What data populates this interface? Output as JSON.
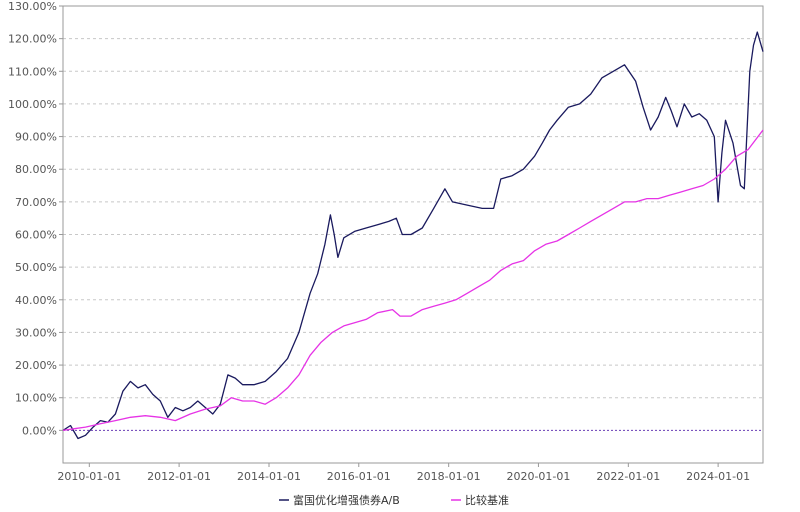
{
  "chart_data": {
    "type": "line",
    "title": "",
    "xlabel": "",
    "ylabel": "",
    "x_ticks": [
      "2010-01-01",
      "2012-01-01",
      "2014-01-01",
      "2016-01-01",
      "2018-01-01",
      "2020-01-01",
      "2022-01-01",
      "2024-01-01"
    ],
    "y_ticks": [
      "0.00%",
      "10.00%",
      "20.00%",
      "30.00%",
      "40.00%",
      "50.00%",
      "60.00%",
      "70.00%",
      "80.00%",
      "90.00%",
      "100.00%",
      "110.00%",
      "120.00%",
      "130.00%"
    ],
    "xlim": [
      "2009-06-01",
      "2024-12-31"
    ],
    "ylim": [
      -10,
      130
    ],
    "grid": "horizontal-dashed",
    "legend_position": "bottom-center",
    "baseline": 0,
    "series": [
      {
        "name": "富国优化增强债券A/B",
        "color": "#1a1a5e",
        "points": [
          [
            "2009-06-01",
            0
          ],
          [
            "2009-08-01",
            1.5
          ],
          [
            "2009-10-01",
            -2.5
          ],
          [
            "2009-12-01",
            -1.5
          ],
          [
            "2010-02-01",
            1
          ],
          [
            "2010-04-01",
            3
          ],
          [
            "2010-06-01",
            2.5
          ],
          [
            "2010-08-01",
            5
          ],
          [
            "2010-10-01",
            12
          ],
          [
            "2010-12-01",
            15
          ],
          [
            "2011-02-01",
            13
          ],
          [
            "2011-04-01",
            14
          ],
          [
            "2011-06-01",
            11
          ],
          [
            "2011-08-01",
            9
          ],
          [
            "2011-10-01",
            4
          ],
          [
            "2011-12-01",
            7
          ],
          [
            "2012-02-01",
            6
          ],
          [
            "2012-04-01",
            7
          ],
          [
            "2012-06-01",
            9
          ],
          [
            "2012-08-01",
            7
          ],
          [
            "2012-10-01",
            5
          ],
          [
            "2012-12-01",
            8
          ],
          [
            "2013-02-01",
            17
          ],
          [
            "2013-04-01",
            16
          ],
          [
            "2013-06-01",
            14
          ],
          [
            "2013-09-01",
            14
          ],
          [
            "2013-12-01",
            15
          ],
          [
            "2014-03-01",
            18
          ],
          [
            "2014-06-01",
            22
          ],
          [
            "2014-09-01",
            30
          ],
          [
            "2014-12-01",
            42
          ],
          [
            "2015-02-01",
            48
          ],
          [
            "2015-04-01",
            57
          ],
          [
            "2015-05-15",
            66
          ],
          [
            "2015-06-15",
            60
          ],
          [
            "2015-07-15",
            53
          ],
          [
            "2015-09-01",
            59
          ],
          [
            "2015-12-01",
            61
          ],
          [
            "2016-03-01",
            62
          ],
          [
            "2016-06-01",
            63
          ],
          [
            "2016-09-01",
            64
          ],
          [
            "2016-11-01",
            65
          ],
          [
            "2016-12-20",
            60
          ],
          [
            "2017-03-01",
            60
          ],
          [
            "2017-06-01",
            62
          ],
          [
            "2017-09-01",
            68
          ],
          [
            "2017-12-01",
            74
          ],
          [
            "2018-02-01",
            70
          ],
          [
            "2018-06-01",
            69
          ],
          [
            "2018-10-01",
            68
          ],
          [
            "2019-01-01",
            68
          ],
          [
            "2019-03-01",
            77
          ],
          [
            "2019-06-01",
            78
          ],
          [
            "2019-09-01",
            80
          ],
          [
            "2019-12-01",
            84
          ],
          [
            "2020-02-01",
            88
          ],
          [
            "2020-04-01",
            92
          ],
          [
            "2020-06-01",
            95
          ],
          [
            "2020-09-01",
            99
          ],
          [
            "2020-12-01",
            100
          ],
          [
            "2021-03-01",
            103
          ],
          [
            "2021-06-01",
            108
          ],
          [
            "2021-09-01",
            110
          ],
          [
            "2021-12-01",
            112
          ],
          [
            "2022-03-01",
            107
          ],
          [
            "2022-05-01",
            99
          ],
          [
            "2022-07-01",
            92
          ],
          [
            "2022-09-01",
            96
          ],
          [
            "2022-11-01",
            102
          ],
          [
            "2022-12-15",
            98
          ],
          [
            "2023-02-01",
            93
          ],
          [
            "2023-04-01",
            100
          ],
          [
            "2023-06-01",
            96
          ],
          [
            "2023-08-01",
            97
          ],
          [
            "2023-10-01",
            95
          ],
          [
            "2023-12-01",
            90
          ],
          [
            "2024-01-01",
            70
          ],
          [
            "2024-02-01",
            85
          ],
          [
            "2024-03-01",
            95
          ],
          [
            "2024-05-01",
            88
          ],
          [
            "2024-07-01",
            75
          ],
          [
            "2024-08-01",
            74
          ],
          [
            "2024-09-15",
            110
          ],
          [
            "2024-10-15",
            118
          ],
          [
            "2024-11-15",
            122
          ],
          [
            "2024-12-31",
            116
          ]
        ]
      },
      {
        "name": "比较基准",
        "color": "#e633e6",
        "points": [
          [
            "2009-06-01",
            0
          ],
          [
            "2009-09-01",
            0.5
          ],
          [
            "2009-12-01",
            1
          ],
          [
            "2010-04-01",
            2
          ],
          [
            "2010-08-01",
            3
          ],
          [
            "2010-12-01",
            4
          ],
          [
            "2011-04-01",
            4.5
          ],
          [
            "2011-08-01",
            4
          ],
          [
            "2011-12-01",
            3
          ],
          [
            "2012-04-01",
            5
          ],
          [
            "2012-08-01",
            6.5
          ],
          [
            "2012-12-01",
            7.5
          ],
          [
            "2013-03-01",
            10
          ],
          [
            "2013-06-01",
            9
          ],
          [
            "2013-09-01",
            9
          ],
          [
            "2013-12-01",
            8
          ],
          [
            "2014-03-01",
            10
          ],
          [
            "2014-06-01",
            13
          ],
          [
            "2014-09-01",
            17
          ],
          [
            "2014-12-01",
            23
          ],
          [
            "2015-03-01",
            27
          ],
          [
            "2015-06-01",
            30
          ],
          [
            "2015-09-01",
            32
          ],
          [
            "2015-12-01",
            33
          ],
          [
            "2016-03-01",
            34
          ],
          [
            "2016-06-01",
            36
          ],
          [
            "2016-10-01",
            37
          ],
          [
            "2016-12-01",
            35
          ],
          [
            "2017-03-01",
            35
          ],
          [
            "2017-06-01",
            37
          ],
          [
            "2017-09-01",
            38
          ],
          [
            "2017-12-01",
            39
          ],
          [
            "2018-03-01",
            40
          ],
          [
            "2018-06-01",
            42
          ],
          [
            "2018-09-01",
            44
          ],
          [
            "2018-12-01",
            46
          ],
          [
            "2019-03-01",
            49
          ],
          [
            "2019-06-01",
            51
          ],
          [
            "2019-09-01",
            52
          ],
          [
            "2019-12-01",
            55
          ],
          [
            "2020-03-01",
            57
          ],
          [
            "2020-06-01",
            58
          ],
          [
            "2020-09-01",
            60
          ],
          [
            "2020-12-01",
            62
          ],
          [
            "2021-03-01",
            64
          ],
          [
            "2021-06-01",
            66
          ],
          [
            "2021-09-01",
            68
          ],
          [
            "2021-12-01",
            70
          ],
          [
            "2022-03-01",
            70
          ],
          [
            "2022-06-01",
            71
          ],
          [
            "2022-09-01",
            71
          ],
          [
            "2022-12-01",
            72
          ],
          [
            "2023-03-01",
            73
          ],
          [
            "2023-06-01",
            74
          ],
          [
            "2023-09-01",
            75
          ],
          [
            "2023-12-01",
            77
          ],
          [
            "2024-03-01",
            80
          ],
          [
            "2024-06-01",
            84
          ],
          [
            "2024-09-01",
            86
          ],
          [
            "2024-12-31",
            92
          ]
        ]
      }
    ]
  }
}
